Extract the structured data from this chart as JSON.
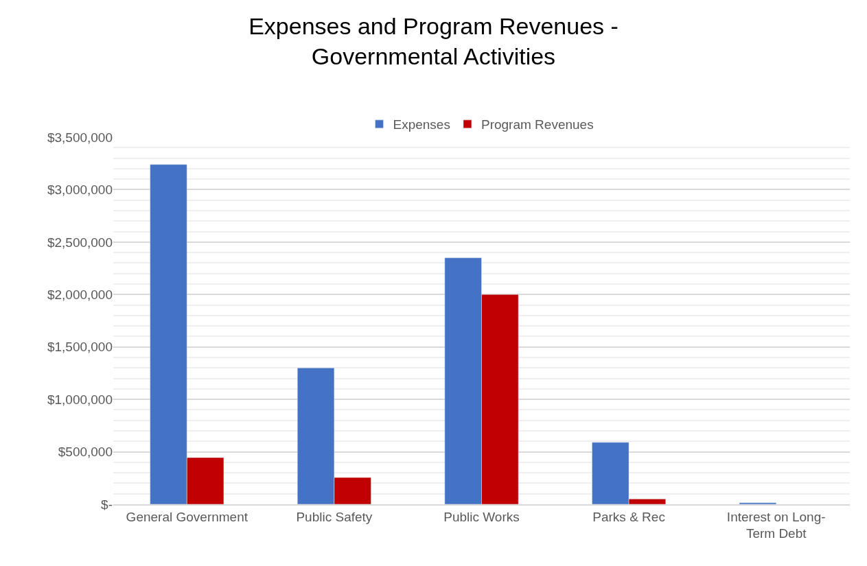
{
  "chart_data": {
    "type": "bar",
    "title": "Expenses and Program Revenues - Governmental Activities",
    "categories": [
      "General Government",
      "Public Safety",
      "Public Works",
      "Parks & Rec",
      "Interest on Long-Term Debt"
    ],
    "series": [
      {
        "name": "Expenses",
        "color": "#4472c4",
        "values": [
          3240000,
          1300000,
          2350000,
          590000,
          14000
        ]
      },
      {
        "name": "Program Revenues",
        "color": "#c00000",
        "values": [
          445000,
          255000,
          2000000,
          50000,
          null
        ]
      }
    ],
    "ylim": [
      0,
      3500000
    ],
    "yticks": [
      {
        "value": 0,
        "label": "$-"
      },
      {
        "value": 500000,
        "label": "$500,000"
      },
      {
        "value": 1000000,
        "label": "$1,000,000"
      },
      {
        "value": 1500000,
        "label": "$1,500,000"
      },
      {
        "value": 2000000,
        "label": "$2,000,000"
      },
      {
        "value": 2500000,
        "label": "$2,500,000"
      },
      {
        "value": 3000000,
        "label": "$3,000,000"
      },
      {
        "value": 3500000,
        "label": "$3,500,000"
      }
    ],
    "grid": "y",
    "legend": "top"
  }
}
